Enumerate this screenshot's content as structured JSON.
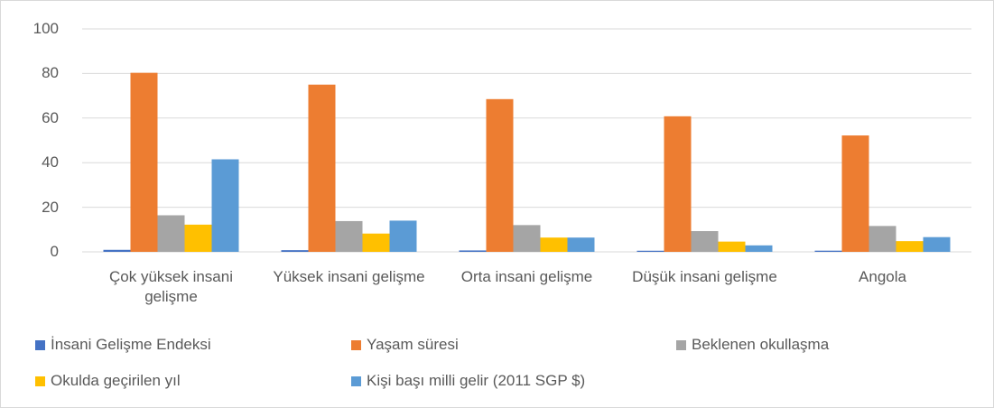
{
  "chart_data": {
    "type": "bar",
    "categories": [
      "Çok yüksek insani gelişme",
      "Yüksek insani gelişme",
      "Orta insani gelişme",
      "Düşük  insani gelişme",
      "Angola"
    ],
    "series": [
      {
        "name": "İnsani Gelişme Endeksi",
        "color": "#4472c4",
        "values": [
          0.9,
          0.75,
          0.63,
          0.5,
          0.53
        ]
      },
      {
        "name": "Yaşam süresi",
        "color": "#ed7d31",
        "values": [
          80.3,
          75,
          68.5,
          60.8,
          52.2
        ]
      },
      {
        "name": "Beklenen okullaşma",
        "color": "#a5a5a5",
        "values": [
          16.4,
          13.8,
          12,
          9.3,
          11.6
        ]
      },
      {
        "name": "Okulda geçirilen yıl",
        "color": "#ffc000",
        "values": [
          12.2,
          8.2,
          6.4,
          4.6,
          4.8
        ]
      },
      {
        "name": "Kişi başı milli gelir (2011 SGP $)",
        "color": "#5b9bd5",
        "values": [
          41.5,
          14,
          6.4,
          2.9,
          6.6
        ]
      }
    ],
    "ylim": [
      0,
      100
    ],
    "yticks": [
      0,
      20,
      40,
      60,
      80,
      100
    ],
    "grid": true,
    "legend": "bottom"
  }
}
